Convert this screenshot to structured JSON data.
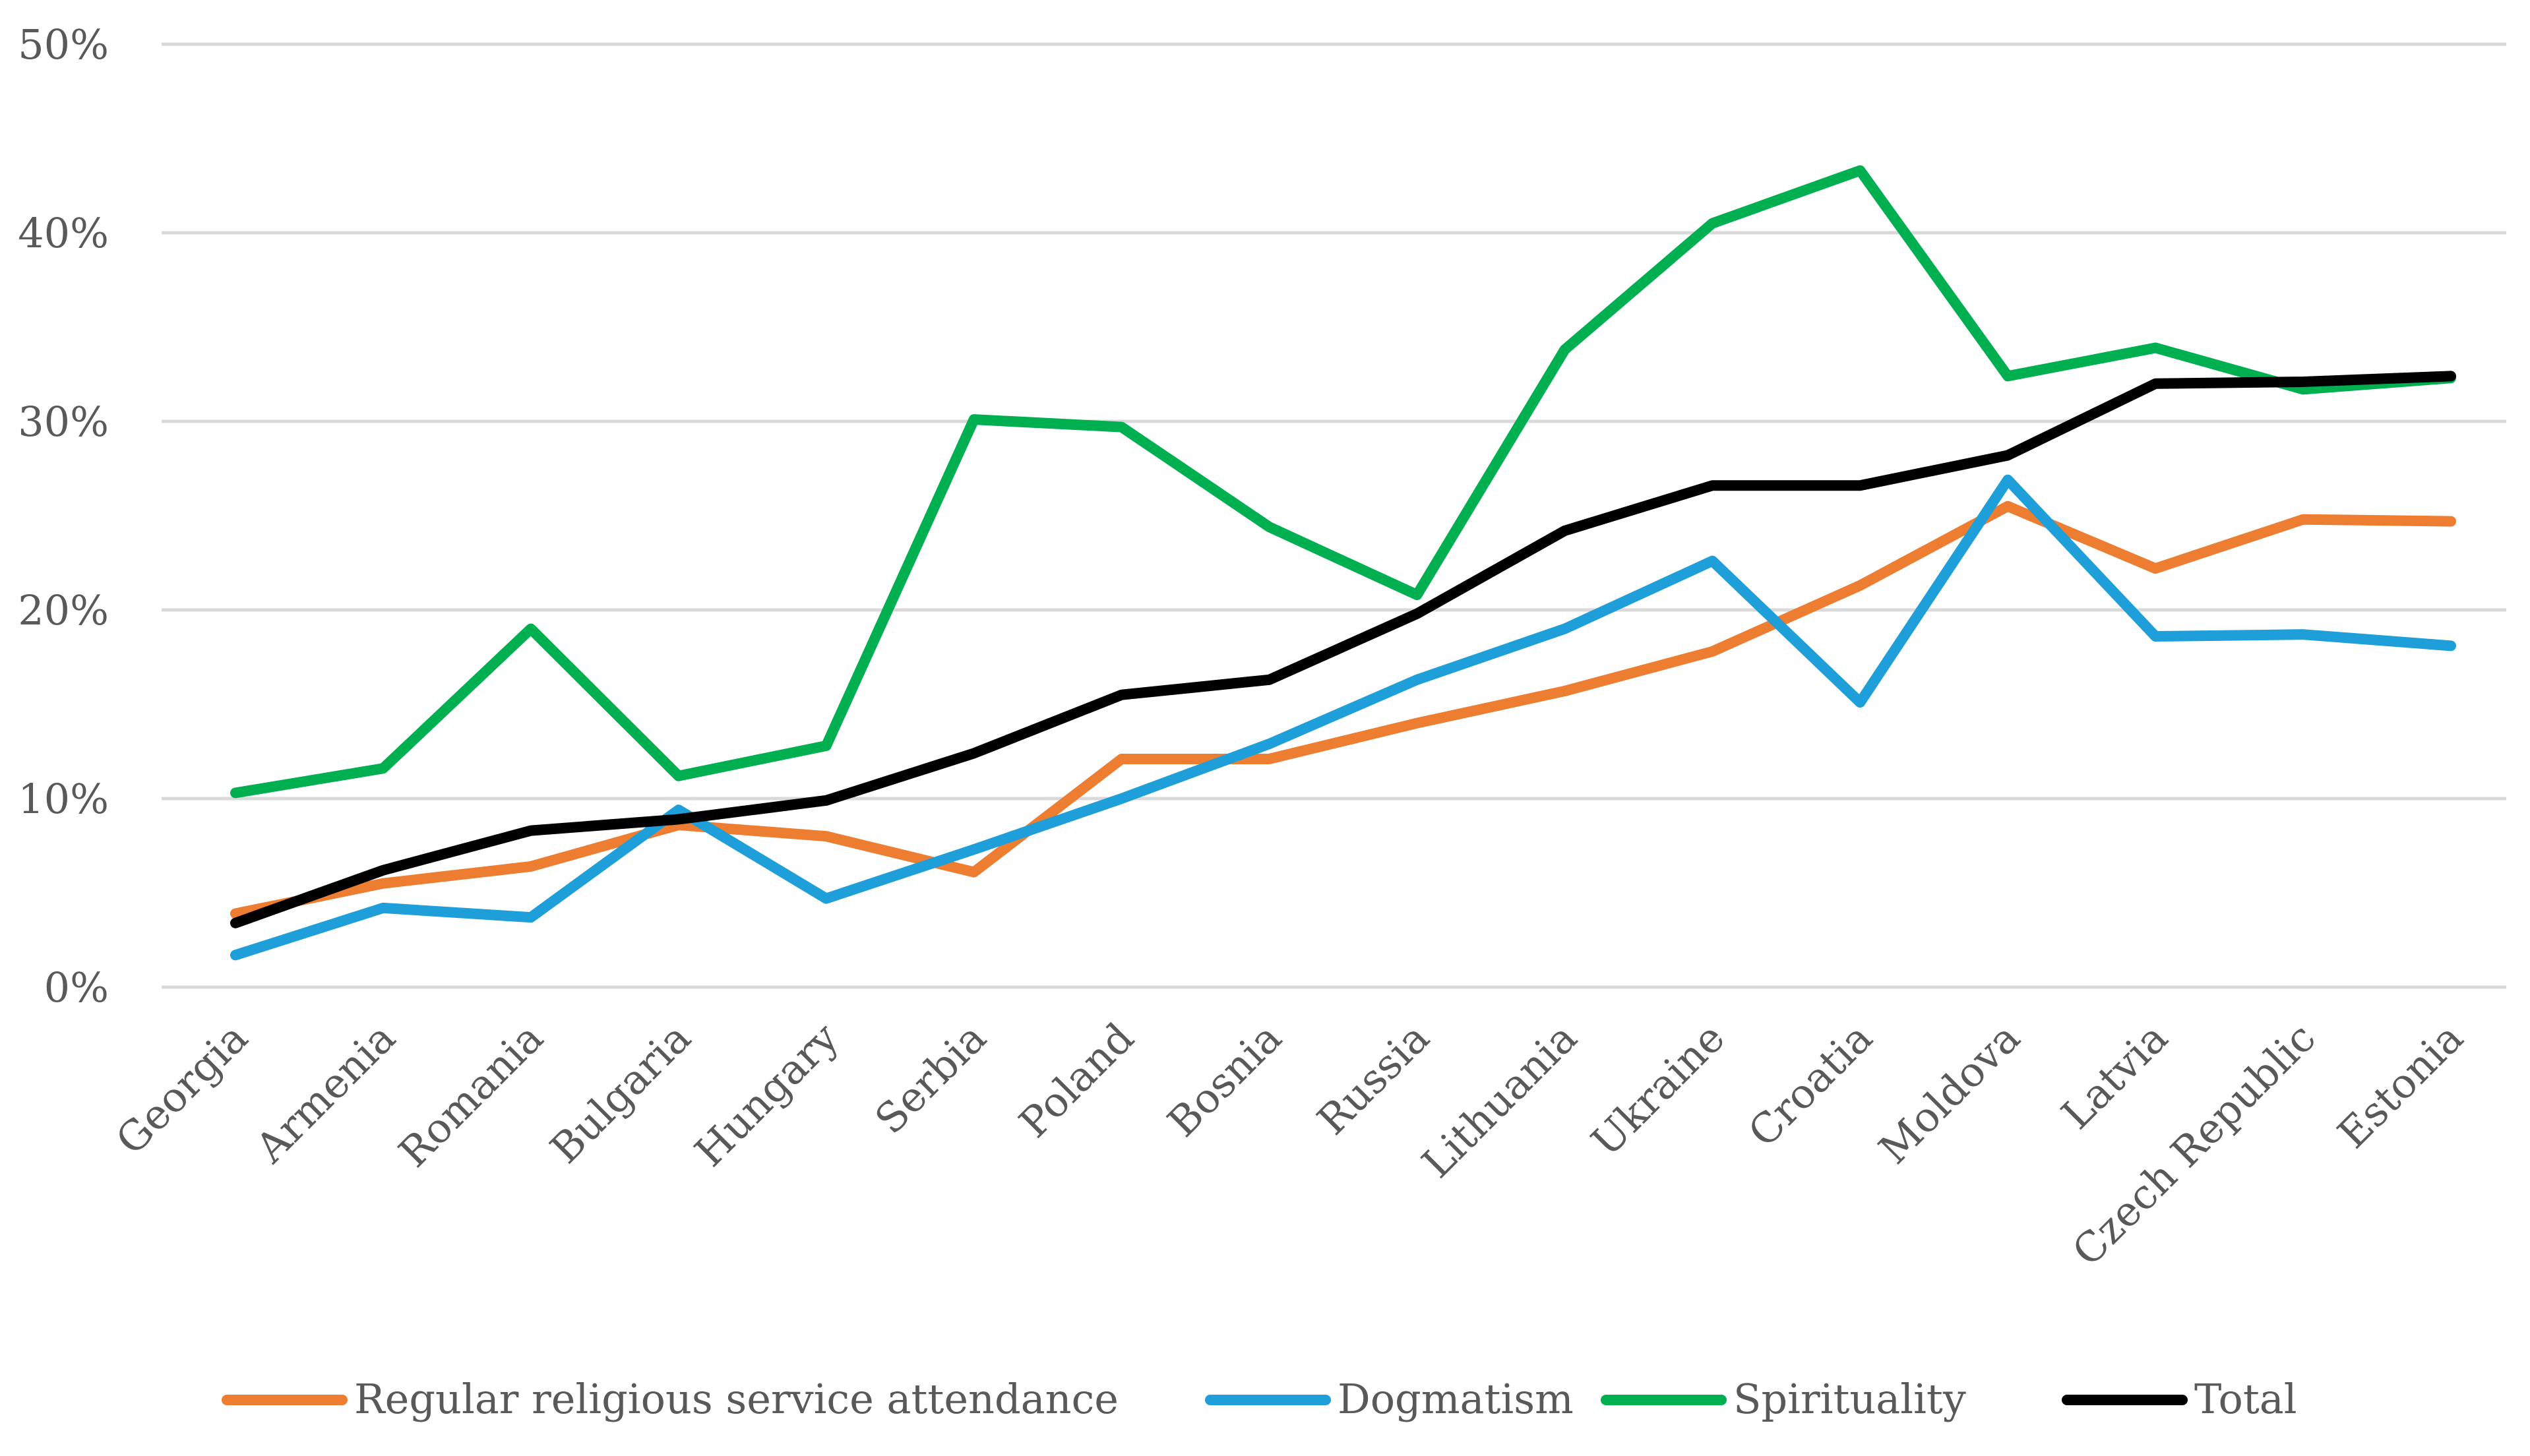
{
  "chart_data": {
    "type": "line",
    "title": "",
    "xlabel": "",
    "ylabel": "",
    "ylim": [
      0,
      50
    ],
    "y_ticks": [
      "0%",
      "10%",
      "20%",
      "30%",
      "40%",
      "50%"
    ],
    "y_tick_values": [
      0,
      10,
      20,
      30,
      40,
      50
    ],
    "grid": true,
    "legend_position": "bottom",
    "categories": [
      "Georgia",
      "Armenia",
      "Romania",
      "Bulgaria",
      "Hungary",
      "Serbia",
      "Poland",
      "Bosnia",
      "Russia",
      "Lithuania",
      "Ukraine",
      "Croatia",
      "Moldova",
      "Latvia",
      "Czech Republic",
      "Estonia"
    ],
    "series": [
      {
        "name": "Regular religious service attendance",
        "color": "#ED7D31",
        "values": [
          3.9,
          5.5,
          6.4,
          8.6,
          8.0,
          6.1,
          12.1,
          12.1,
          14.0,
          15.7,
          17.8,
          21.3,
          25.5,
          22.2,
          24.8,
          24.7
        ]
      },
      {
        "name": "Dogmatism",
        "color": "#1F9FD9",
        "values": [
          1.7,
          4.2,
          3.7,
          9.4,
          4.7,
          7.3,
          10.0,
          12.9,
          16.3,
          19.0,
          22.6,
          15.1,
          26.9,
          18.6,
          18.7,
          18.1
        ]
      },
      {
        "name": "Spirituality",
        "color": "#00B050",
        "values": [
          10.3,
          11.6,
          19.0,
          11.2,
          12.8,
          30.1,
          29.7,
          24.4,
          20.8,
          33.8,
          40.5,
          43.3,
          32.4,
          33.9,
          31.7,
          32.3
        ]
      },
      {
        "name": "Total",
        "color": "#000000",
        "values": [
          3.4,
          6.2,
          8.3,
          8.9,
          9.9,
          12.4,
          15.5,
          16.3,
          19.8,
          24.2,
          26.6,
          26.6,
          28.2,
          32.0,
          32.1,
          32.4
        ]
      }
    ]
  }
}
